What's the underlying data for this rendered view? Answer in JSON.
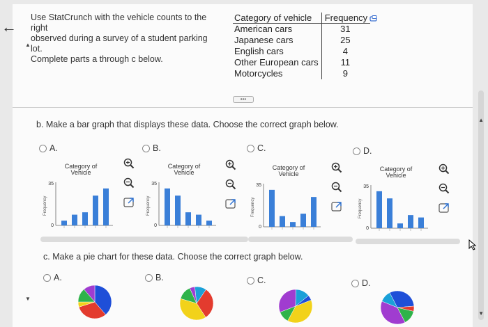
{
  "nav": {
    "back_icon": "arrow-left-icon"
  },
  "intro": {
    "line1": "Use StatCrunch with the vehicle counts to the right",
    "line2": "observed during a survey of a student parking lot.",
    "line3": "Complete parts a through c below."
  },
  "table": {
    "header_category": "Category of vehicle",
    "header_frequency": "Frequency",
    "rows": [
      {
        "category": "American cars",
        "frequency": "31"
      },
      {
        "category": "Japanese cars",
        "frequency": "25"
      },
      {
        "category": "English cars",
        "frequency": "4"
      },
      {
        "category": "Other European cars",
        "frequency": "11"
      },
      {
        "category": "Motorcycles",
        "frequency": "9"
      }
    ]
  },
  "expand_label": "•••",
  "part_b": {
    "prompt": "b. Make a bar graph that displays these data. Choose the correct graph below.",
    "options": [
      {
        "letter": "A.",
        "title1": "Category of",
        "title2": "Vehicle",
        "ylabel": "Frequency",
        "ytick_top": "35",
        "ytick_bottom": "0"
      },
      {
        "letter": "B.",
        "title1": "Category of",
        "title2": "Vehicle",
        "ylabel": "Frequency",
        "ytick_top": "35",
        "ytick_bottom": "0"
      },
      {
        "letter": "C.",
        "title1": "Category of",
        "title2": "Vehicle",
        "ylabel": "Frequency",
        "ytick_top": "35",
        "ytick_bottom": "0"
      },
      {
        "letter": "D.",
        "title1": "Category of",
        "title2": "Vehicle",
        "ylabel": "Frequency",
        "ytick_top": "35",
        "ytick_bottom": "0"
      }
    ]
  },
  "part_c": {
    "prompt": "c. Make a pie chart for these data. Choose the correct graph below.",
    "options": [
      {
        "letter": "A."
      },
      {
        "letter": "B."
      },
      {
        "letter": "C."
      },
      {
        "letter": "D."
      }
    ]
  },
  "colors": {
    "bar": "#3a7fd8",
    "pie": [
      "#1f4fd8",
      "#e33b2e",
      "#f2d21a",
      "#2fb34a",
      "#a03cd0",
      "#1aa0d8"
    ]
  },
  "chart_data": [
    {
      "type": "bar",
      "title": "Category of Vehicle",
      "ylabel": "Frequency",
      "ylim": [
        0,
        35
      ],
      "values": [
        4,
        9,
        11,
        25,
        31
      ]
    },
    {
      "type": "bar",
      "title": "Category of Vehicle",
      "ylabel": "Frequency",
      "ylim": [
        0,
        35
      ],
      "values": [
        31,
        25,
        11,
        9,
        4
      ]
    },
    {
      "type": "bar",
      "title": "Category of Vehicle",
      "ylabel": "Frequency",
      "ylim": [
        0,
        35
      ],
      "values": [
        31,
        9,
        4,
        11,
        25
      ]
    },
    {
      "type": "bar",
      "title": "Category of Vehicle",
      "ylabel": "Frequency",
      "ylim": [
        0,
        35
      ],
      "values": [
        31,
        25,
        4,
        11,
        9
      ]
    },
    {
      "type": "pie",
      "values": [
        31,
        25,
        4,
        11,
        9
      ]
    },
    {
      "type": "pie",
      "values": [
        25,
        31,
        11,
        4,
        9
      ]
    },
    {
      "type": "pie",
      "values": [
        31,
        9,
        25,
        11,
        4
      ]
    },
    {
      "type": "pie",
      "values": [
        11,
        31,
        9,
        25,
        4
      ]
    }
  ]
}
